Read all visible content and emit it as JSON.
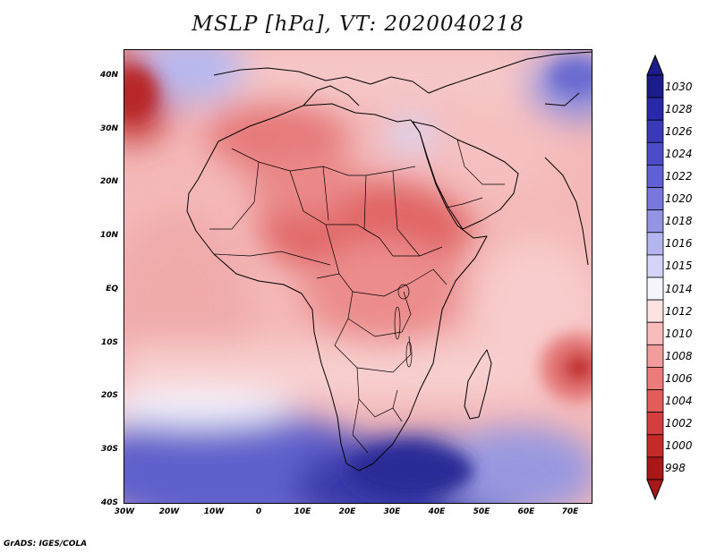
{
  "title": "MSLP [hPa], VT: 2020040218",
  "footer": "GrADS: IGES/COLA",
  "map": {
    "projection": "lat-lon",
    "lon_range": [
      -30,
      75
    ],
    "lat_range": [
      -40,
      45
    ],
    "lat_ticks": [
      "40N",
      "30N",
      "20N",
      "10N",
      "EQ",
      "10S",
      "20S",
      "30S",
      "40S"
    ],
    "lon_ticks": [
      "30W",
      "20W",
      "10W",
      "0",
      "10E",
      "20E",
      "30E",
      "40E",
      "50E",
      "60E",
      "70E"
    ],
    "features": {
      "low_centers": [
        "Sahara heat low",
        "Sahel low",
        "East African low",
        "Indian Ocean low (~15S,72E)",
        "Atlantic low (~37N,30W)"
      ],
      "high_centers": [
        "South Atlantic high",
        "South Indian Ocean high (~37S,35E)",
        "Eastern Europe/Caspian high"
      ]
    }
  },
  "colorbar": {
    "labels": [
      "1030",
      "1028",
      "1026",
      "1024",
      "1022",
      "1020",
      "1018",
      "1016",
      "1015",
      "1014",
      "1012",
      "1010",
      "1008",
      "1006",
      "1004",
      "1002",
      "1000",
      "998"
    ],
    "colors": [
      "#1c1c8a",
      "#2828a8",
      "#3a3ab8",
      "#4c4cc8",
      "#6060d4",
      "#7878dc",
      "#9494e4",
      "#b4b4ee",
      "#d4d4f6",
      "#f6f6ff",
      "#fde2e2",
      "#f8bcbc",
      "#f29c9c",
      "#ec7c7c",
      "#e25c5c",
      "#d43e3e",
      "#c42a2a",
      "#a81818"
    ]
  }
}
